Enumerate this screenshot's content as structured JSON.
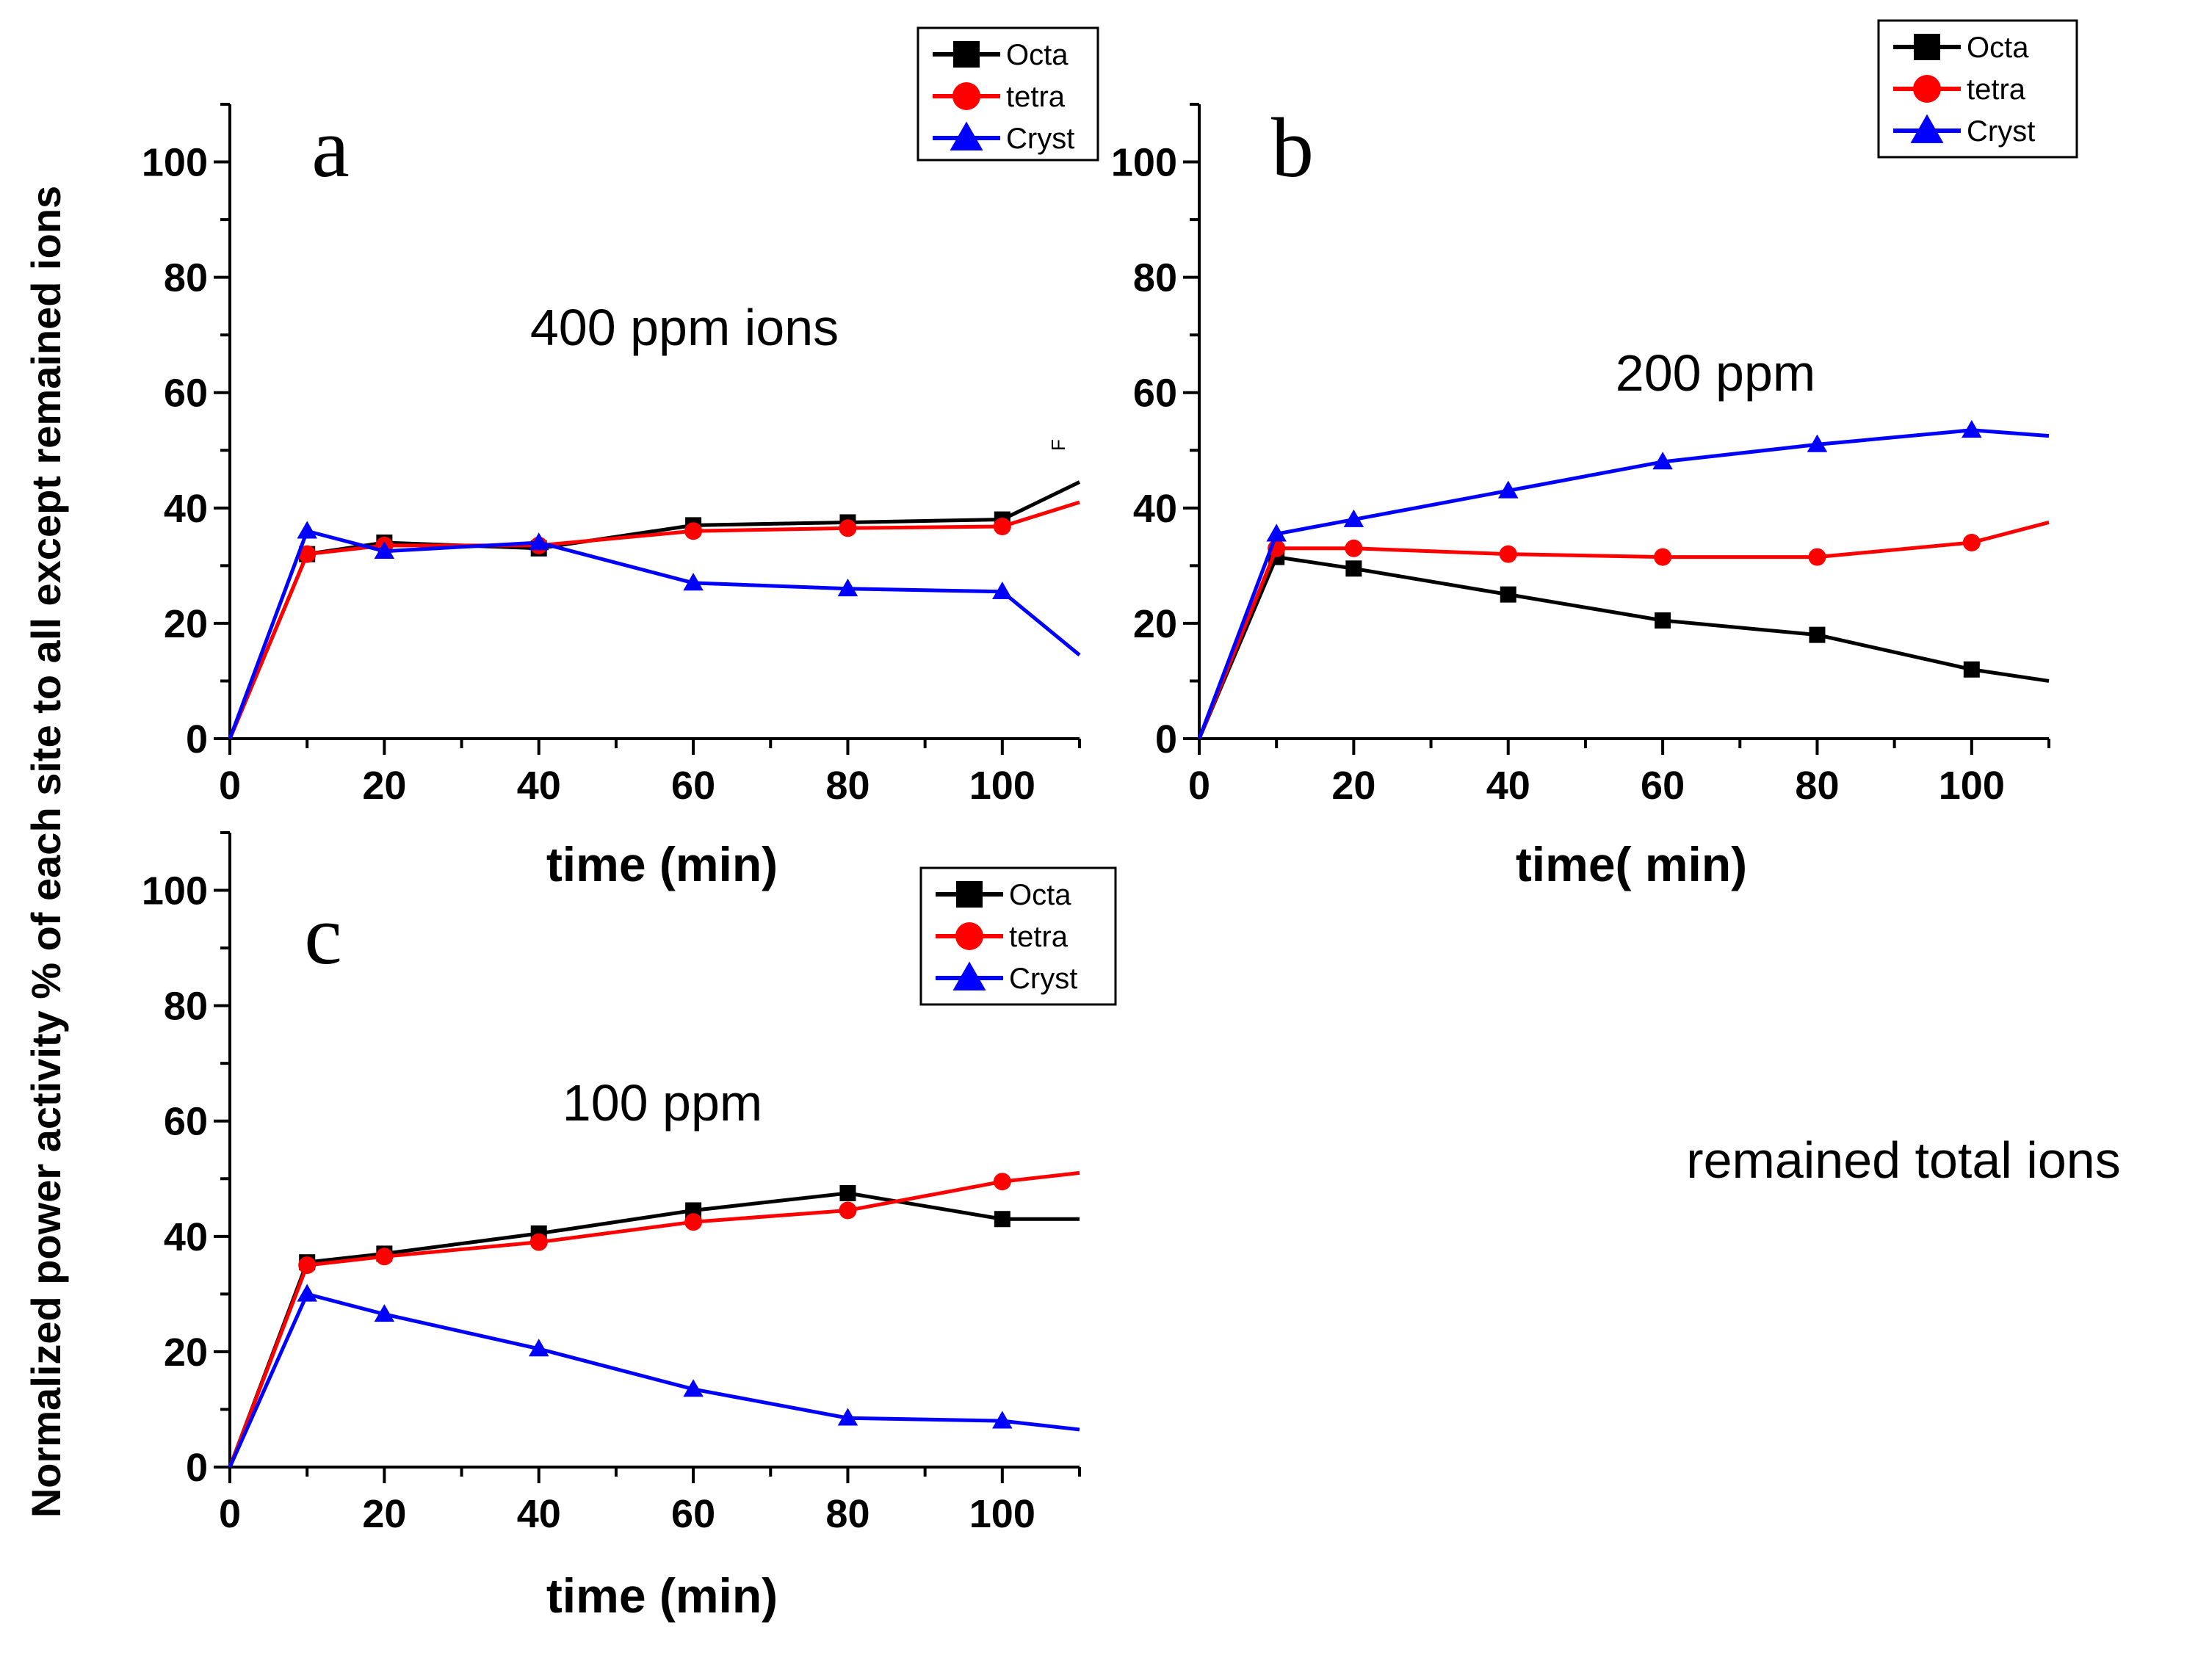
{
  "figure": {
    "ylabel": "Normalized power activity  % of  each site to all except remained ions",
    "side_note": "remained total ions",
    "stray_mark": "F"
  },
  "chart_data": [
    {
      "id": "a",
      "type": "line",
      "panel_letter": "a",
      "annotation": "400 ppm ions",
      "xlabel": "time (min)",
      "ylabel": "",
      "xlim": [
        0,
        110
      ],
      "ylim": [
        0,
        110
      ],
      "xticks": [
        0,
        20,
        40,
        60,
        80,
        100
      ],
      "yticks": [
        0,
        20,
        40,
        60,
        80,
        100
      ],
      "legend_position": "top-right",
      "series": [
        {
          "name": "Octa",
          "color": "#000000",
          "marker": "square",
          "x": [
            0,
            10,
            20,
            40,
            60,
            80,
            100,
            110
          ],
          "y": [
            0,
            32,
            34,
            33,
            37,
            37.5,
            38,
            44.5
          ]
        },
        {
          "name": "tetra",
          "color": "#ff0000",
          "marker": "circle",
          "x": [
            0,
            10,
            20,
            40,
            60,
            80,
            100,
            110
          ],
          "y": [
            0,
            32,
            33.5,
            33.5,
            36,
            36.5,
            36.8,
            41
          ]
        },
        {
          "name": "Cryst",
          "color": "#0000ff",
          "marker": "triangle",
          "x": [
            0,
            10,
            20,
            40,
            60,
            80,
            100,
            110
          ],
          "y": [
            0,
            36,
            32.5,
            34,
            27,
            26,
            25.5,
            14.5
          ]
        }
      ]
    },
    {
      "id": "b",
      "type": "line",
      "panel_letter": "b",
      "annotation": "200 ppm",
      "xlabel": "time( min)",
      "ylabel": "",
      "xlim": [
        0,
        110
      ],
      "ylim": [
        0,
        110
      ],
      "xticks": [
        0,
        20,
        40,
        60,
        80,
        100
      ],
      "yticks": [
        0,
        20,
        40,
        60,
        80,
        100
      ],
      "legend_position": "top-right",
      "series": [
        {
          "name": "Octa",
          "color": "#000000",
          "marker": "square",
          "x": [
            0,
            10,
            20,
            40,
            60,
            80,
            100,
            110
          ],
          "y": [
            0,
            31.5,
            29.5,
            25,
            20.5,
            18,
            12,
            10
          ]
        },
        {
          "name": "tetra",
          "color": "#ff0000",
          "marker": "circle",
          "x": [
            0,
            10,
            20,
            40,
            60,
            80,
            100,
            110
          ],
          "y": [
            0,
            33,
            33,
            32,
            31.5,
            31.5,
            34,
            37.5
          ]
        },
        {
          "name": "Cryst",
          "color": "#0000ff",
          "marker": "triangle",
          "x": [
            0,
            10,
            20,
            40,
            60,
            80,
            100,
            110
          ],
          "y": [
            0,
            35.5,
            38,
            43,
            48,
            51,
            53.5,
            52.5
          ]
        }
      ]
    },
    {
      "id": "c",
      "type": "line",
      "panel_letter": "c",
      "annotation": "100 ppm",
      "xlabel": "time (min)",
      "ylabel": "",
      "xlim": [
        0,
        110
      ],
      "ylim": [
        0,
        110
      ],
      "xticks": [
        0,
        20,
        40,
        60,
        80,
        100
      ],
      "yticks": [
        0,
        20,
        40,
        60,
        80,
        100
      ],
      "legend_position": "top-right",
      "series": [
        {
          "name": "Octa",
          "color": "#000000",
          "marker": "square",
          "x": [
            0,
            10,
            20,
            40,
            60,
            80,
            100,
            110
          ],
          "y": [
            0,
            35.5,
            37,
            40.5,
            44.5,
            47.5,
            43,
            43
          ]
        },
        {
          "name": "tetra",
          "color": "#ff0000",
          "marker": "circle",
          "x": [
            0,
            10,
            20,
            40,
            60,
            80,
            100,
            110
          ],
          "y": [
            0,
            35,
            36.5,
            39,
            42.5,
            44.5,
            49.5,
            51
          ]
        },
        {
          "name": "Cryst",
          "color": "#0000ff",
          "marker": "triangle",
          "x": [
            0,
            10,
            20,
            40,
            60,
            80,
            100,
            110
          ],
          "y": [
            0,
            30,
            26.5,
            20.5,
            13.5,
            8.5,
            8,
            6.5
          ]
        }
      ]
    }
  ]
}
